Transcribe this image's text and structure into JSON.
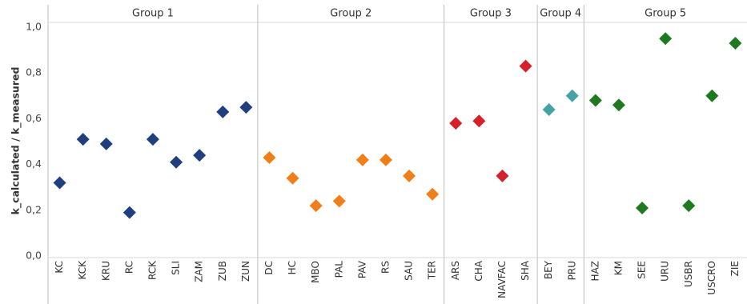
{
  "chart_data": {
    "type": "scatter",
    "ylabel": "k_calculated / k_measured",
    "ylim": [
      0,
      1
    ],
    "yticks": [
      "0,0",
      "0,2",
      "0,4",
      "0,6",
      "0,8",
      "1,0"
    ],
    "marker": "diamond",
    "grid": false,
    "groups": [
      {
        "name": "Group 1",
        "color": "#1f3f7f",
        "points": [
          {
            "label": "KC",
            "value": 0.32
          },
          {
            "label": "KCK",
            "value": 0.51
          },
          {
            "label": "KRU",
            "value": 0.49
          },
          {
            "label": "RC",
            "value": 0.19
          },
          {
            "label": "RCK",
            "value": 0.51
          },
          {
            "label": "SLI",
            "value": 0.41
          },
          {
            "label": "ZAM",
            "value": 0.44
          },
          {
            "label": "ZUB",
            "value": 0.63
          },
          {
            "label": "ZUN",
            "value": 0.65
          }
        ]
      },
      {
        "name": "Group 2",
        "color": "#f07f1a",
        "points": [
          {
            "label": "DC",
            "value": 0.43
          },
          {
            "label": "HC",
            "value": 0.34
          },
          {
            "label": "MBO",
            "value": 0.22
          },
          {
            "label": "PAL",
            "value": 0.24
          },
          {
            "label": "PAV",
            "value": 0.42
          },
          {
            "label": "RS",
            "value": 0.42
          },
          {
            "label": "SAU",
            "value": 0.35
          },
          {
            "label": "TER",
            "value": 0.27
          }
        ]
      },
      {
        "name": "Group 3",
        "color": "#d6202a",
        "points": [
          {
            "label": "ARS",
            "value": 0.58
          },
          {
            "label": "CHA",
            "value": 0.59
          },
          {
            "label": "NAVFAC",
            "value": 0.35
          },
          {
            "label": "SHA",
            "value": 0.83
          }
        ]
      },
      {
        "name": "Group 4",
        "color": "#45a3a3",
        "points": [
          {
            "label": "BEY",
            "value": 0.64
          },
          {
            "label": "PRU",
            "value": 0.7
          }
        ]
      },
      {
        "name": "Group 5",
        "color": "#1f7a1f",
        "points": [
          {
            "label": "HAZ",
            "value": 0.68
          },
          {
            "label": "KM",
            "value": 0.66
          },
          {
            "label": "SEE",
            "value": 0.21
          },
          {
            "label": "URU",
            "value": 0.95
          },
          {
            "label": "USBR",
            "value": 0.22
          },
          {
            "label": "USCRO",
            "value": 0.7
          },
          {
            "label": "ZIE",
            "value": 0.93
          }
        ]
      }
    ]
  }
}
